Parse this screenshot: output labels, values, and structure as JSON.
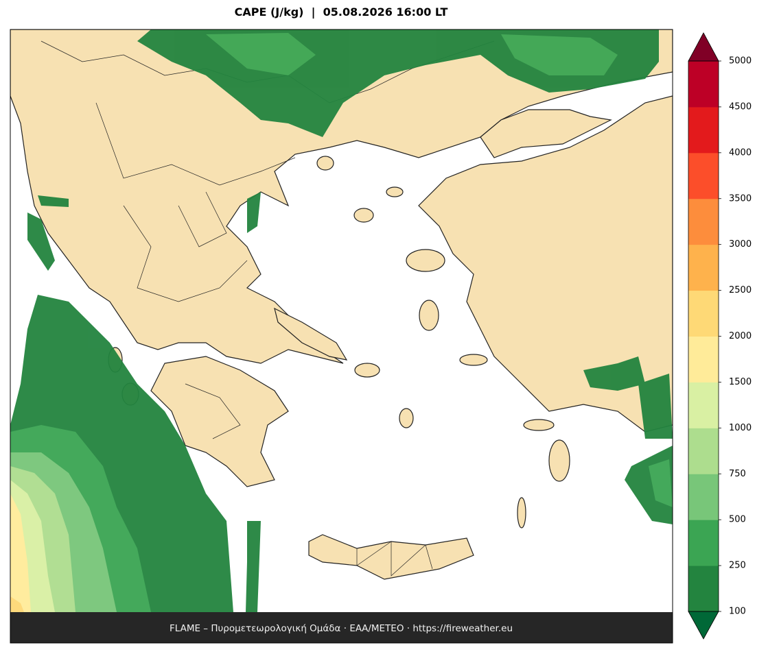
{
  "title": "CAPE (J/kg)  |  05.08.2026 16:00 LT",
  "colorbar": {
    "levels": [
      100,
      250,
      500,
      750,
      1000,
      1500,
      2000,
      2500,
      3000,
      3500,
      4000,
      4500,
      5000
    ],
    "colors": [
      "#23843f",
      "#3ba553",
      "#78c679",
      "#addd8e",
      "#d9f0a3",
      "#ffeb99",
      "#fed976",
      "#feb24c",
      "#fd8d3c",
      "#fc4e2a",
      "#e31a1c",
      "#bd0026"
    ],
    "under_color": "#006837",
    "over_color": "#800026"
  },
  "footer": "FLAME – Πυρομετεωρολογική Ομάδα · ΕΑΑ/METEO · https://fireweather.eu"
}
